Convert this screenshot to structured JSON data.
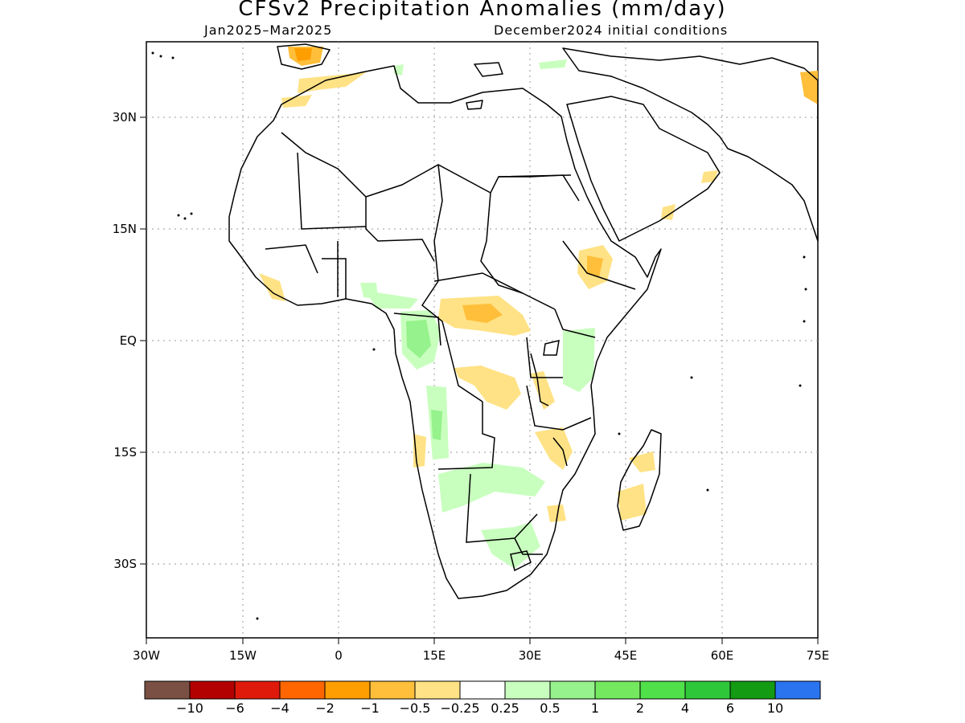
{
  "header": {
    "title": "CFSv2 Precipitation Anomalies (mm/day)",
    "period": "Jan2025–Mar2025",
    "initial": "December2024 initial conditions"
  },
  "map": {
    "lon_labels": [
      "30W",
      "15W",
      "0",
      "15E",
      "30E",
      "45E",
      "60E",
      "75E"
    ],
    "lat_labels": [
      "30N",
      "15N",
      "EQ",
      "15S",
      "30S"
    ]
  },
  "colorbar": {
    "colors": [
      "#7a4f44",
      "#b30000",
      "#e01a0a",
      "#ff6600",
      "#ff9e00",
      "#ffbf3a",
      "#ffe285",
      "#ffffff",
      "#c8ffbe",
      "#96f28c",
      "#74e85f",
      "#4fe04a",
      "#2fc73a",
      "#139b13",
      "#2b74f0"
    ],
    "labels": [
      "−10",
      "−6",
      "−4",
      "−2",
      "−1",
      "−0.5",
      "−0.25",
      "0.25",
      "0.5",
      "1",
      "2",
      "4",
      "6",
      "10"
    ]
  }
}
